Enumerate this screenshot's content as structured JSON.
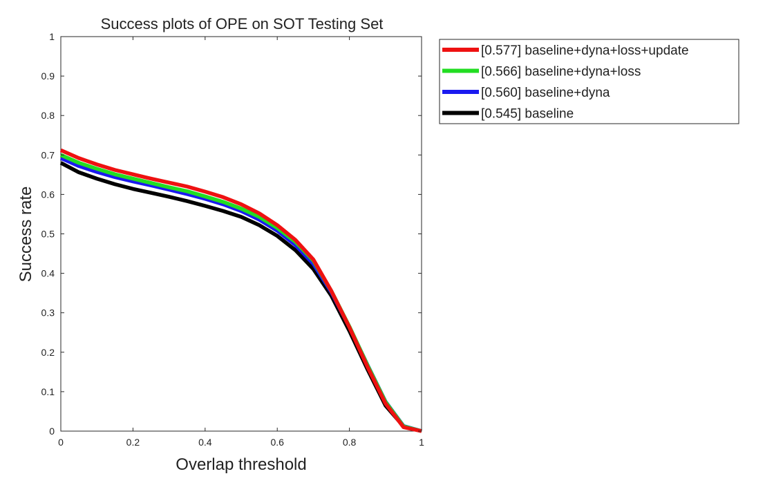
{
  "chart_data": {
    "type": "line",
    "title": "Success plots of OPE on SOT Testing Set",
    "xlabel": "Overlap threshold",
    "ylabel": "Success rate",
    "xlim": [
      0,
      1
    ],
    "ylim": [
      0,
      1
    ],
    "x_ticks": [
      "0",
      "0.2",
      "0.4",
      "0.6",
      "0.8",
      "1"
    ],
    "y_ticks": [
      "0",
      "0.1",
      "0.2",
      "0.3",
      "0.4",
      "0.5",
      "0.6",
      "0.7",
      "0.8",
      "0.9",
      "1"
    ],
    "x_tick_values": [
      0,
      0.2,
      0.4,
      0.6,
      0.8,
      1
    ],
    "y_tick_values": [
      0,
      0.1,
      0.2,
      0.3,
      0.4,
      0.5,
      0.6,
      0.7,
      0.8,
      0.9,
      1
    ],
    "grid": false,
    "legend_position": "outside-top-right",
    "x": [
      0,
      0.05,
      0.1,
      0.15,
      0.2,
      0.25,
      0.3,
      0.35,
      0.4,
      0.45,
      0.5,
      0.55,
      0.6,
      0.65,
      0.7,
      0.75,
      0.8,
      0.85,
      0.9,
      0.95,
      1
    ],
    "series": [
      {
        "name": "[0.577] baseline+dyna+loss+update",
        "color": "#ee1111",
        "values": [
          0.712,
          0.692,
          0.676,
          0.662,
          0.651,
          0.64,
          0.63,
          0.62,
          0.607,
          0.593,
          0.575,
          0.552,
          0.522,
          0.485,
          0.435,
          0.355,
          0.263,
          0.163,
          0.07,
          0.01,
          0.0
        ]
      },
      {
        "name": "[0.566] baseline+dyna+loss",
        "color": "#22dd22",
        "values": [
          0.7,
          0.68,
          0.665,
          0.651,
          0.64,
          0.629,
          0.618,
          0.608,
          0.595,
          0.581,
          0.564,
          0.543,
          0.515,
          0.48,
          0.432,
          0.355,
          0.265,
          0.167,
          0.074,
          0.012,
          0.0
        ]
      },
      {
        "name": "[0.560] baseline+dyna",
        "color": "#1a1af0",
        "values": [
          0.692,
          0.672,
          0.657,
          0.644,
          0.633,
          0.623,
          0.612,
          0.601,
          0.589,
          0.575,
          0.558,
          0.536,
          0.508,
          0.472,
          0.424,
          0.352,
          0.264,
          0.168,
          0.075,
          0.013,
          0.0
        ]
      },
      {
        "name": "[0.545] baseline",
        "color": "#000000",
        "values": [
          0.68,
          0.656,
          0.64,
          0.626,
          0.614,
          0.604,
          0.594,
          0.583,
          0.571,
          0.558,
          0.543,
          0.522,
          0.495,
          0.459,
          0.411,
          0.343,
          0.254,
          0.157,
          0.065,
          0.012,
          0.0
        ]
      }
    ]
  }
}
